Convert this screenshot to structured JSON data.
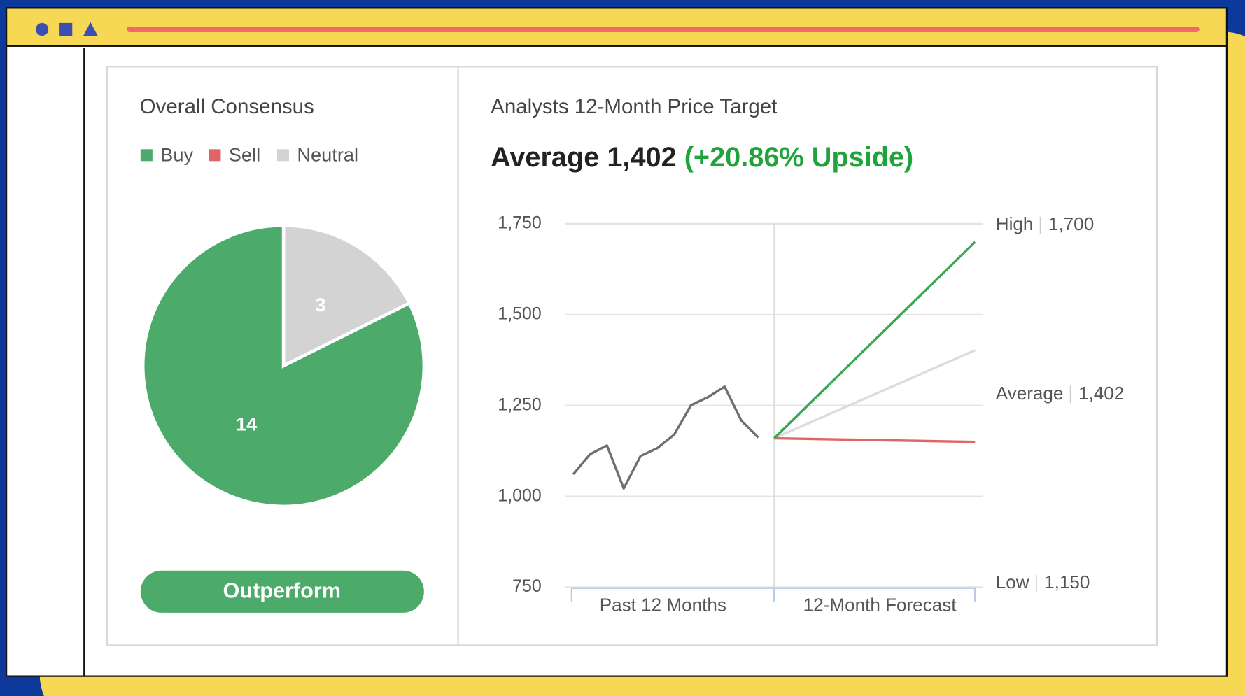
{
  "chart_data": [
    {
      "type": "pie",
      "title": "Overall Consensus",
      "categories": [
        "Buy",
        "Sell",
        "Neutral"
      ],
      "values": [
        14,
        0,
        3
      ],
      "colors": [
        "#4caa6a",
        "#e06666",
        "#d3d3d3"
      ],
      "badge": "Outperform"
    },
    {
      "type": "line",
      "title": "Analysts 12-Month Price Target",
      "subtitle": "Average 1,402",
      "subtitle_highlight": "(+20.86% Upside)",
      "categories": [
        "Past 12 Months",
        "12-Month Forecast"
      ],
      "ylim": [
        750,
        1750
      ],
      "yticks": [
        750,
        {
          "value": 1000,
          "label": "1,000"
        },
        {
          "value": 1250,
          "label": "1,250"
        },
        {
          "value": 1500,
          "label": "1,500"
        },
        {
          "value": 1750,
          "label": "1,750"
        }
      ],
      "grid": true,
      "history": {
        "color": "#6f6f6f",
        "values": [
          1061,
          1116,
          1140,
          1022,
          1111,
          1133,
          1170,
          1251,
          1273,
          1302,
          1208,
          1162
        ]
      },
      "series": [
        {
          "name": "High",
          "color": "#3aa853",
          "values": [
            1160,
            1700
          ],
          "value_labels": [
            null,
            "1,700"
          ]
        },
        {
          "name": "Average",
          "color": "#dcdcdc",
          "values": [
            1160,
            1402
          ],
          "value_labels": [
            null,
            "1,402"
          ]
        },
        {
          "name": "Low",
          "color": "#e06666",
          "values": [
            1160,
            1150
          ],
          "value_labels": [
            null,
            "1,150"
          ]
        }
      ]
    }
  ]
}
